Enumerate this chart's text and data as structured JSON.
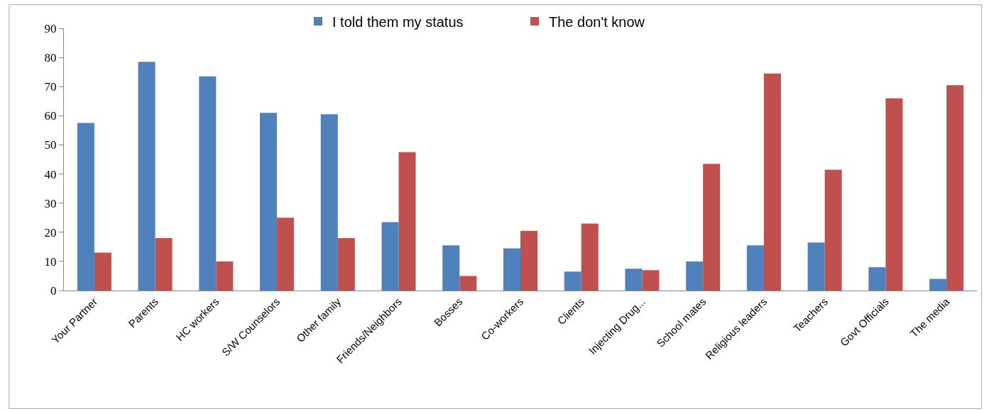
{
  "chart_data": {
    "type": "bar",
    "categories": [
      "Your Partner",
      "Parents",
      "HC workers",
      "S/W Counselors",
      "Other family",
      "Friends/Neighbors",
      "Bosses",
      "Co-workers",
      "Clients",
      "Injecting Drug...",
      "School mates",
      "Religious leaders",
      "Teachers",
      "Govt Officials",
      "The media"
    ],
    "series": [
      {
        "name": "I told them my status",
        "color": "#4f81bd",
        "values": [
          57.5,
          78.5,
          73.5,
          61,
          60.5,
          23.5,
          15.5,
          14.5,
          6.5,
          7.5,
          10,
          15.5,
          16.5,
          8,
          4
        ]
      },
      {
        "name": "The don't know",
        "color": "#c0504d",
        "values": [
          13,
          18,
          10,
          25,
          18,
          47.5,
          5,
          20.5,
          23,
          7,
          43.5,
          74.5,
          41.5,
          66,
          70.5
        ]
      }
    ],
    "ylim": [
      0,
      90
    ],
    "yticks": [
      0,
      10,
      20,
      30,
      40,
      50,
      60,
      70,
      80,
      90
    ],
    "grid": false,
    "legend": "top"
  }
}
